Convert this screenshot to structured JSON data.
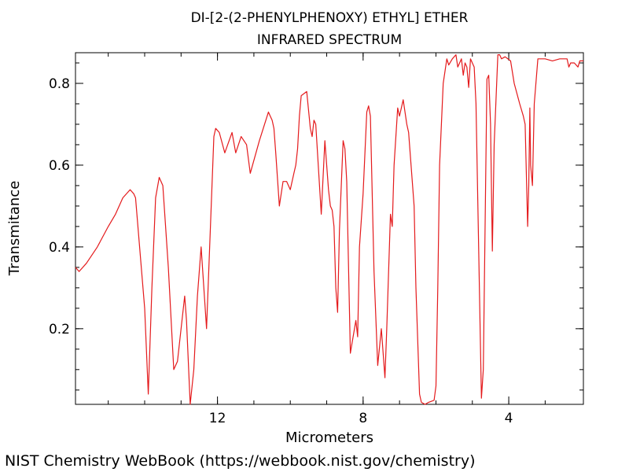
{
  "credit": "NIST Chemistry WebBook (https://webbook.nist.gov/chemistry)",
  "chart_data": {
    "type": "line",
    "title": "DI-[2-(2-PHENYLPHENOXY) ETHYL] ETHER",
    "subtitle": "INFRARED SPECTRUM",
    "xlabel": "Micrometers",
    "ylabel": "Transmitance",
    "xlim": [
      15.9,
      1.95
    ],
    "ylim": [
      0.015,
      0.875
    ],
    "x_reversed": true,
    "x_ticks": [
      12,
      8,
      4
    ],
    "x_tick_labels": [
      "12",
      "8",
      "4"
    ],
    "y_ticks": [
      0.2,
      0.4,
      0.6,
      0.8
    ],
    "y_tick_labels": [
      "0.2",
      "0.4",
      "0.6",
      "0.8"
    ],
    "grid": false,
    "legend": "none",
    "line_color": "#e41a1c",
    "series": [
      {
        "x": [
          15.9,
          15.8,
          15.6,
          15.3,
          15.0,
          14.8,
          14.6,
          14.4,
          14.3,
          14.25,
          14.0,
          13.9,
          13.8,
          13.7,
          13.6,
          13.5,
          13.35,
          13.2,
          13.1,
          12.9,
          12.85,
          12.75,
          12.65,
          12.55,
          12.45,
          12.3,
          12.1,
          12.05,
          11.95,
          11.8,
          11.6,
          11.5,
          11.35,
          11.2,
          11.1,
          10.85,
          10.6,
          10.55,
          10.5,
          10.45,
          10.4,
          10.3,
          10.2,
          10.1,
          10.0,
          9.9,
          9.85,
          9.8,
          9.75,
          9.7,
          9.55,
          9.45,
          9.4,
          9.35,
          9.3,
          9.15,
          9.05,
          9.0,
          8.95,
          8.9,
          8.85,
          8.8,
          8.75,
          8.7,
          8.65,
          8.55,
          8.5,
          8.45,
          8.35,
          8.2,
          8.15,
          8.1,
          8.0,
          7.9,
          7.85,
          7.8,
          7.7,
          7.6,
          7.5,
          7.4,
          7.35,
          7.25,
          7.2,
          7.15,
          7.05,
          7.0,
          6.9,
          6.8,
          6.75,
          6.6,
          6.55,
          6.45,
          6.4,
          6.3,
          6.2,
          6.05,
          6.0,
          5.95,
          5.9,
          5.8,
          5.7,
          5.65,
          5.55,
          5.45,
          5.4,
          5.3,
          5.25,
          5.2,
          5.15,
          5.1,
          5.05,
          4.95,
          4.9,
          4.75,
          4.7,
          4.6,
          4.55,
          4.5,
          4.45,
          4.4,
          4.3,
          4.25,
          4.2,
          4.1,
          3.95,
          3.85,
          3.7,
          3.6,
          3.55,
          3.5,
          3.48,
          3.45,
          3.42,
          3.4,
          3.35,
          3.3,
          3.2,
          3.0,
          2.8,
          2.6,
          2.4,
          2.35,
          2.3,
          2.2,
          2.1,
          2.05,
          1.95
        ],
        "y": [
          0.35,
          0.34,
          0.36,
          0.4,
          0.45,
          0.48,
          0.52,
          0.54,
          0.53,
          0.52,
          0.25,
          0.04,
          0.3,
          0.52,
          0.57,
          0.55,
          0.35,
          0.1,
          0.12,
          0.28,
          0.22,
          0.015,
          0.1,
          0.28,
          0.4,
          0.2,
          0.67,
          0.69,
          0.68,
          0.63,
          0.68,
          0.63,
          0.67,
          0.65,
          0.58,
          0.66,
          0.73,
          0.72,
          0.71,
          0.69,
          0.63,
          0.5,
          0.56,
          0.56,
          0.54,
          0.58,
          0.6,
          0.64,
          0.72,
          0.77,
          0.78,
          0.69,
          0.67,
          0.71,
          0.7,
          0.48,
          0.66,
          0.6,
          0.54,
          0.5,
          0.49,
          0.45,
          0.3,
          0.24,
          0.44,
          0.66,
          0.64,
          0.56,
          0.14,
          0.22,
          0.18,
          0.4,
          0.53,
          0.73,
          0.745,
          0.72,
          0.34,
          0.11,
          0.2,
          0.08,
          0.2,
          0.48,
          0.45,
          0.6,
          0.74,
          0.72,
          0.76,
          0.7,
          0.68,
          0.5,
          0.3,
          0.04,
          0.02,
          0.015,
          0.02,
          0.025,
          0.06,
          0.3,
          0.6,
          0.8,
          0.86,
          0.845,
          0.86,
          0.87,
          0.84,
          0.86,
          0.82,
          0.85,
          0.84,
          0.79,
          0.86,
          0.84,
          0.75,
          0.03,
          0.1,
          0.81,
          0.82,
          0.7,
          0.39,
          0.65,
          0.87,
          0.87,
          0.86,
          0.865,
          0.855,
          0.8,
          0.75,
          0.72,
          0.7,
          0.52,
          0.45,
          0.55,
          0.74,
          0.6,
          0.55,
          0.75,
          0.86,
          0.86,
          0.855,
          0.86,
          0.86,
          0.84,
          0.85,
          0.85,
          0.84,
          0.855,
          0.855
        ]
      }
    ]
  }
}
